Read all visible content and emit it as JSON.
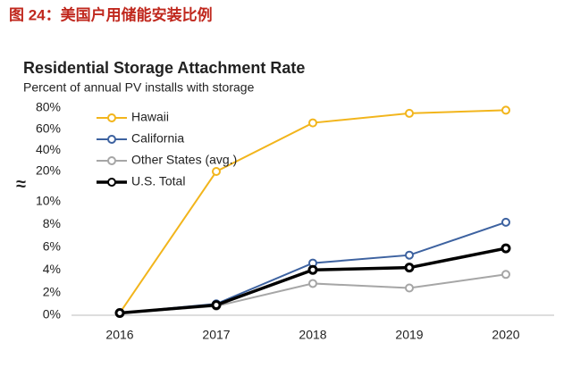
{
  "caption": "图 24：美国户用储能安装比例",
  "chart_data": {
    "type": "line",
    "title": "Residential Storage Attachment Rate",
    "subtitle": "Percent of annual PV installs with storage",
    "categories": [
      "2016",
      "2017",
      "2018",
      "2019",
      "2020"
    ],
    "series": [
      {
        "name": "Hawaii",
        "color": "#f2b51c",
        "width": 2,
        "values": [
          0.2,
          20,
          66,
          75,
          78
        ]
      },
      {
        "name": "California",
        "color": "#3d62a0",
        "width": 2,
        "values": [
          0.2,
          1.0,
          4.6,
          5.3,
          8.2
        ]
      },
      {
        "name": "Other States (avg.)",
        "color": "#a6a6a6",
        "width": 2,
        "values": [
          0.2,
          0.8,
          2.8,
          2.4,
          3.6
        ]
      },
      {
        "name": "U.S. Total",
        "color": "#000000",
        "width": 3.5,
        "values": [
          0.2,
          0.9,
          4.0,
          4.2,
          5.9
        ]
      }
    ],
    "ylim": [
      0,
      80
    ],
    "axis_break": [
      10,
      20
    ],
    "break_symbol": "≈",
    "yticks": [
      {
        "value": 0,
        "label": "0%"
      },
      {
        "value": 2,
        "label": "2%"
      },
      {
        "value": 4,
        "label": "4%"
      },
      {
        "value": 6,
        "label": "6%"
      },
      {
        "value": 8,
        "label": "8%"
      },
      {
        "value": 10,
        "label": "10%"
      },
      {
        "value": 20,
        "label": "20%"
      },
      {
        "value": 40,
        "label": "40%"
      },
      {
        "value": 60,
        "label": "60%"
      },
      {
        "value": 80,
        "label": "80%"
      }
    ],
    "legend": "upper left"
  }
}
